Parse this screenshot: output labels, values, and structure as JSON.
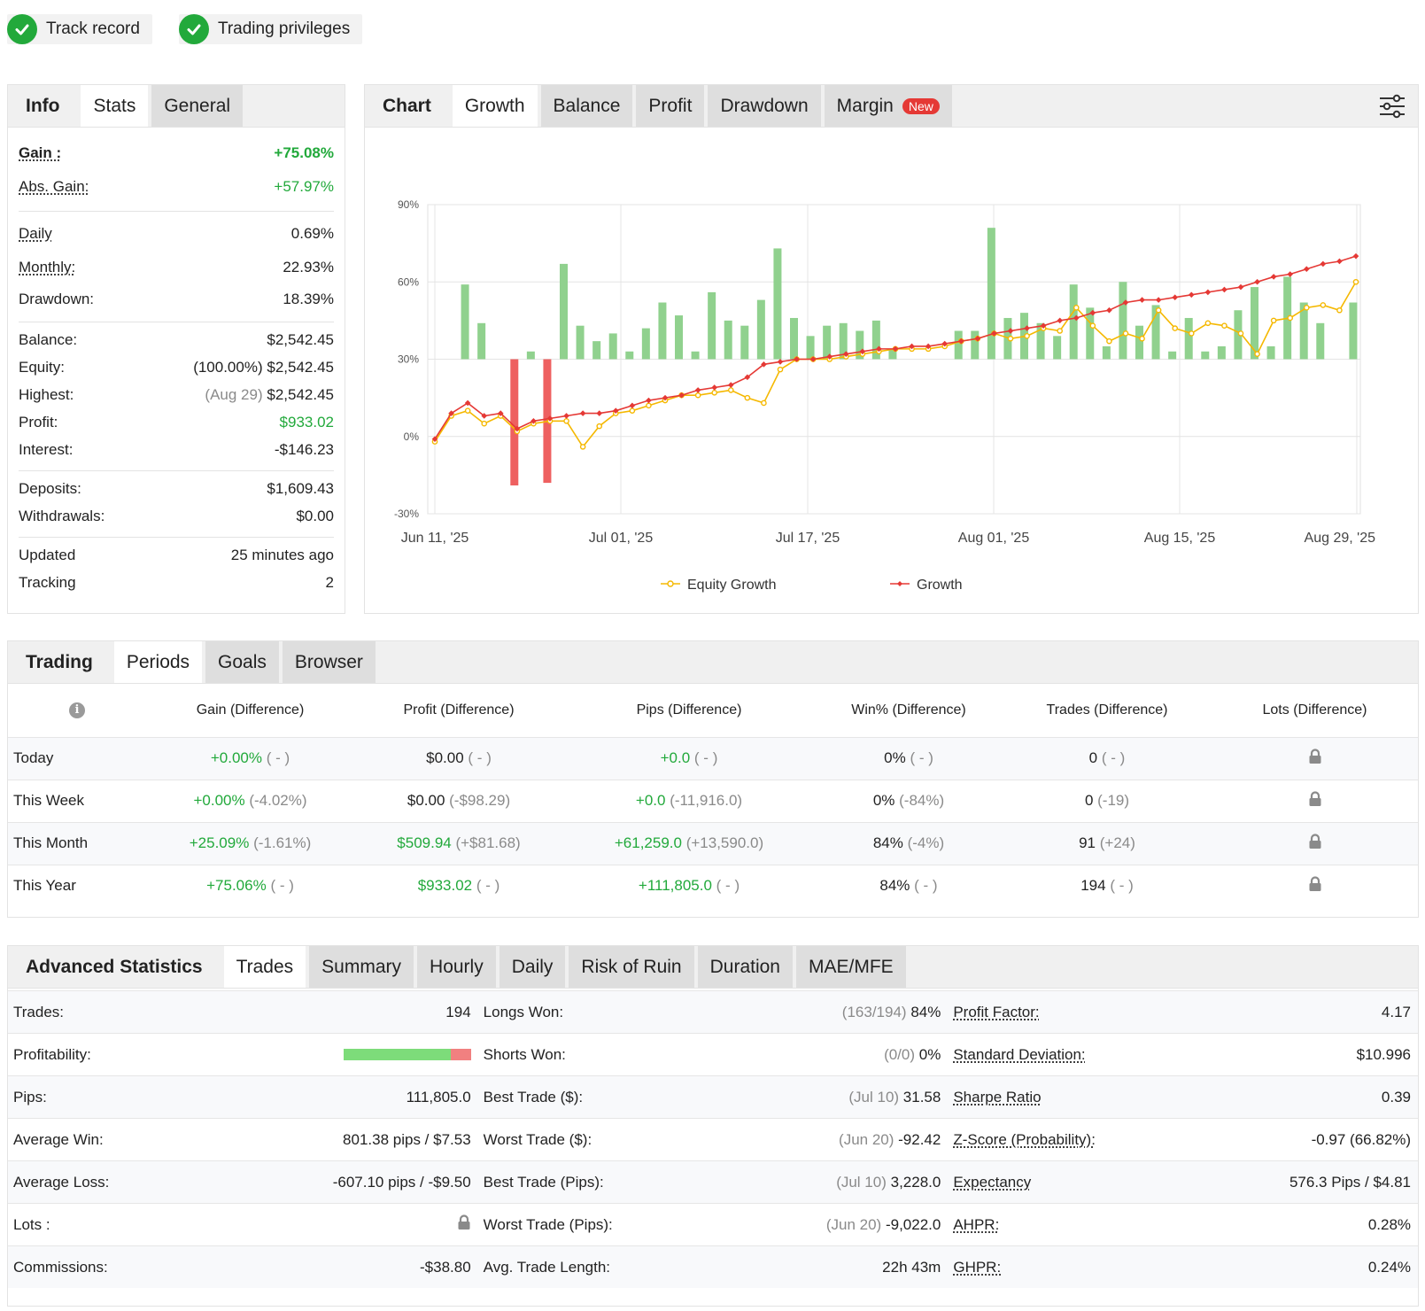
{
  "badges": [
    {
      "label": "Track record"
    },
    {
      "label": "Trading privileges"
    }
  ],
  "info_panel": {
    "tabs": [
      "Info",
      "Stats",
      "General"
    ],
    "rows": {
      "gain": {
        "label": "Gain :",
        "value": "+75.08%"
      },
      "abs_gain": {
        "label": "Abs. Gain:",
        "value": "+57.97%"
      },
      "daily": {
        "label": "Daily",
        "value": "0.69%"
      },
      "monthly": {
        "label": "Monthly:",
        "value": "22.93%"
      },
      "drawdown": {
        "label": "Drawdown:",
        "value": "18.39%"
      },
      "balance": {
        "label": "Balance:",
        "value": "$2,542.45"
      },
      "equity": {
        "label": "Equity:",
        "prefix": "(100.00%)",
        "value": "$2,542.45"
      },
      "highest": {
        "label": "Highest:",
        "prefix": "(Aug 29)",
        "value": "$2,542.45"
      },
      "profit": {
        "label": "Profit:",
        "value": "$933.02"
      },
      "interest": {
        "label": "Interest:",
        "value": "-$146.23"
      },
      "deposits": {
        "label": "Deposits:",
        "value": "$1,609.43"
      },
      "withdrawals": {
        "label": "Withdrawals:",
        "value": "$0.00"
      },
      "updated": {
        "label": "Updated",
        "value": "25 minutes ago"
      },
      "tracking": {
        "label": "Tracking",
        "value": "2"
      }
    }
  },
  "chart_panel": {
    "tabs": [
      "Chart",
      "Growth",
      "Balance",
      "Profit",
      "Drawdown",
      "Margin"
    ],
    "new_badge": "New",
    "settings_icon": "sliders-icon"
  },
  "chart_data": {
    "type": "bar+line",
    "y_ticks": [
      "90%",
      "60%",
      "30%",
      "0%",
      "-30%"
    ],
    "ylim": [
      -30,
      90
    ],
    "x_ticks": [
      "Jun 11, '25",
      "Jul 01, '25",
      "Jul 17, '25",
      "Aug 01, '25",
      "Aug 15, '25",
      "Aug 29, '25"
    ],
    "legend": [
      "Equity Growth",
      "Growth"
    ],
    "legend_position": "bottom",
    "colors": {
      "equity": "#f5b800",
      "growth": "#e53935",
      "bar_pos": "#90d18e",
      "bar_neg": "#ee6060"
    },
    "bars": [
      0,
      29,
      14,
      0,
      -49,
      3,
      -48,
      37,
      13,
      7,
      10,
      3,
      12,
      22,
      17,
      3,
      26,
      15,
      13,
      23,
      43,
      16,
      9,
      13,
      14,
      11,
      15,
      4,
      0,
      0,
      0,
      11,
      11,
      51,
      16,
      18,
      14,
      9,
      29,
      20,
      5,
      30,
      13,
      21,
      3,
      16,
      3,
      5,
      19,
      28,
      5,
      32,
      22,
      14,
      0,
      22,
      3
    ],
    "growth": [
      -1,
      9,
      13,
      8,
      9,
      3,
      6,
      7,
      8,
      9,
      9,
      10,
      12,
      14,
      15,
      16,
      18,
      19,
      20,
      23,
      28,
      29,
      30,
      30,
      31,
      32,
      33,
      34,
      34,
      35,
      35,
      36,
      37,
      38,
      40,
      41,
      42,
      43,
      45,
      46,
      48,
      49,
      52,
      53,
      53,
      54,
      55,
      56,
      57,
      58,
      60,
      62,
      63,
      65,
      67,
      68,
      70
    ],
    "equity": [
      -2,
      8,
      10,
      5,
      8,
      2,
      5,
      6,
      6,
      -4,
      4,
      9,
      10,
      12,
      14,
      16,
      16,
      17,
      18,
      15,
      13,
      26,
      30,
      30,
      30,
      31,
      32,
      33,
      34,
      34,
      34,
      35,
      37,
      38,
      40,
      38,
      39,
      42,
      41,
      50,
      43,
      37,
      40,
      38,
      49,
      42,
      40,
      44,
      43,
      40,
      32,
      45,
      46,
      50,
      51,
      49,
      60
    ],
    "eq_growth_index_map": "same x as growth"
  },
  "trading_panel": {
    "tabs": [
      "Trading",
      "Periods",
      "Goals",
      "Browser"
    ],
    "headers": [
      "Gain (Difference)",
      "Profit (Difference)",
      "Pips (Difference)",
      "Win% (Difference)",
      "Trades (Difference)",
      "Lots (Difference)"
    ],
    "rows": [
      {
        "label": "Today",
        "gain": "+0.00%",
        "gain_d": "( - )",
        "profit": "$0.00",
        "profit_d": "( - )",
        "pips": "+0.0",
        "pips_d": "( - )",
        "win": "0%",
        "win_d": "( - )",
        "trades": "0",
        "trades_d": "( - )"
      },
      {
        "label": "This Week",
        "gain": "+0.00%",
        "gain_d": "(-4.02%)",
        "profit": "$0.00",
        "profit_d": "(-$98.29)",
        "pips": "+0.0",
        "pips_d": "(-11,916.0)",
        "win": "0%",
        "win_d": "(-84%)",
        "trades": "0",
        "trades_d": "(-19)"
      },
      {
        "label": "This Month",
        "gain": "+25.09%",
        "gain_d": "(-1.61%)",
        "profit": "$509.94",
        "profit_d": "(+$81.68)",
        "pips": "+61,259.0",
        "pips_d": "(+13,590.0)",
        "win": "84%",
        "win_d": "(-4%)",
        "trades": "91",
        "trades_d": "(+24)"
      },
      {
        "label": "This Year",
        "gain": "+75.06%",
        "gain_d": "( - )",
        "profit": "$933.02",
        "profit_d": "( - )",
        "pips": "+111,805.0",
        "pips_d": "( - )",
        "win": "84%",
        "win_d": "( - )",
        "trades": "194",
        "trades_d": "( - )"
      }
    ]
  },
  "advanced_panel": {
    "tabs": [
      "Advanced Statistics",
      "Trades",
      "Summary",
      "Hourly",
      "Daily",
      "Risk of Ruin",
      "Duration",
      "MAE/MFE"
    ],
    "profitability": {
      "won_fraction": 0.84
    },
    "col1": [
      {
        "k": "Trades:",
        "v": "194"
      },
      {
        "k": "Profitability:",
        "v": ""
      },
      {
        "k": "Pips:",
        "v": "111,805.0"
      },
      {
        "k": "Average Win:",
        "v": "801.38 pips / $7.53"
      },
      {
        "k": "Average Loss:",
        "v": "-607.10 pips / -$9.50"
      },
      {
        "k": "Lots :",
        "v": ""
      },
      {
        "k": "Commissions:",
        "v": "-$38.80"
      }
    ],
    "col2": [
      {
        "k": "Longs Won:",
        "p": "(163/194)",
        "v": "84%"
      },
      {
        "k": "Shorts Won:",
        "p": "(0/0)",
        "v": "0%"
      },
      {
        "k": "Best Trade ($):",
        "p": "(Jul 10)",
        "v": "31.58"
      },
      {
        "k": "Worst Trade ($):",
        "p": "(Jun 20)",
        "v": "-92.42"
      },
      {
        "k": "Best Trade (Pips):",
        "p": "(Jul 10)",
        "v": "3,228.0"
      },
      {
        "k": "Worst Trade (Pips):",
        "p": "(Jun 20)",
        "v": "-9,022.0"
      },
      {
        "k": "Avg. Trade Length:",
        "p": "",
        "v": "22h 43m"
      }
    ],
    "col3": [
      {
        "k": "Profit Factor:",
        "v": "4.17"
      },
      {
        "k": "Standard Deviation:",
        "v": "$10.996"
      },
      {
        "k": "Sharpe Ratio",
        "v": "0.39"
      },
      {
        "k": "Z-Score (Probability):",
        "v": "-0.97 (66.82%)"
      },
      {
        "k": "Expectancy",
        "v": "576.3 Pips / $4.81"
      },
      {
        "k": "AHPR:",
        "v": "0.28%"
      },
      {
        "k": "GHPR:",
        "v": "0.24%"
      }
    ]
  }
}
